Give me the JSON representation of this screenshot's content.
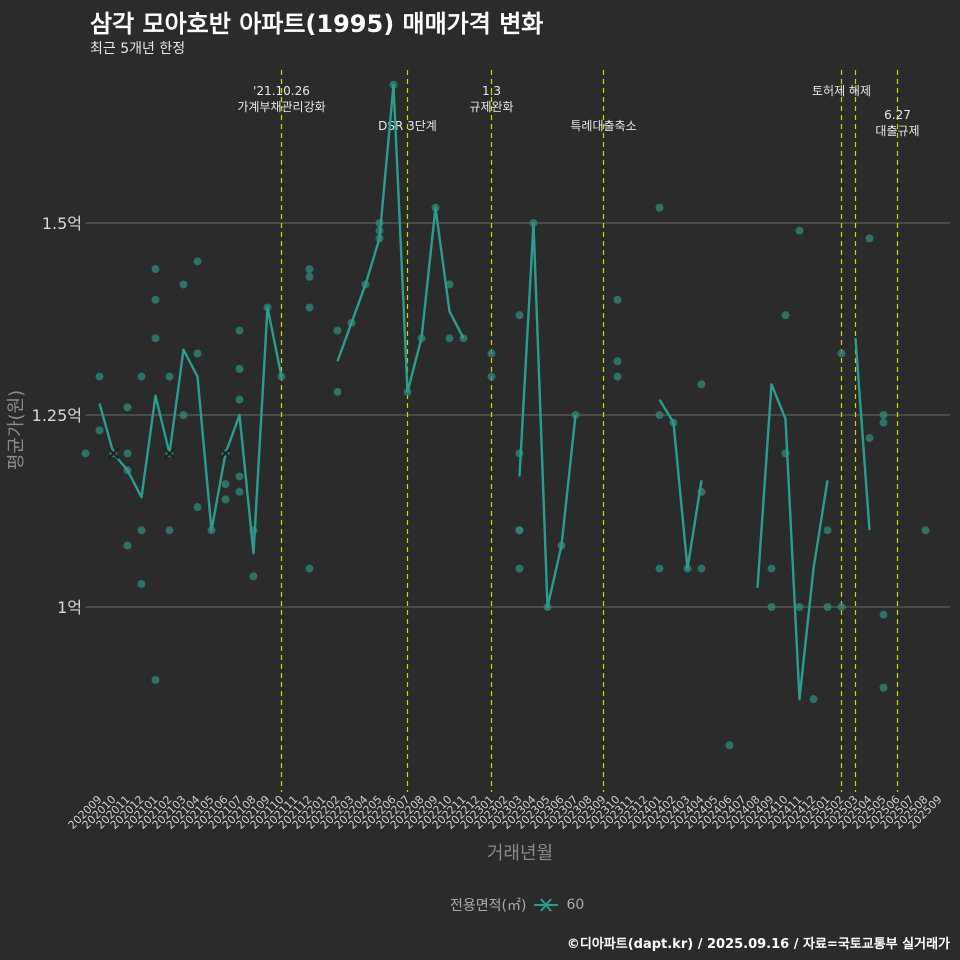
{
  "header": {
    "title": "삼각 모아호반 아파트(1995) 매매가격 변화",
    "subtitle": "최근 5개년 한정"
  },
  "caption": "©디아파트(dapt.kr) / 2025.09.16 / 자료=국토교통부 실거래가",
  "legend": {
    "title": "전용면적(㎡)",
    "item": "60"
  },
  "colors": {
    "line": "#2a9d8f",
    "point": "#2f8a7e",
    "vline": "#d4d400",
    "grid": "#6a6a6a",
    "text": "#cfcfcf"
  },
  "chart_data": {
    "type": "line",
    "xlabel": "거래년월",
    "ylabel": "평균가(원)",
    "ylim": [
      0.76,
      1.75
    ],
    "yticks": [
      {
        "value": 1.0,
        "label": "1억"
      },
      {
        "value": 1.25,
        "label": "1.25억"
      },
      {
        "value": 1.5,
        "label": "1.5억"
      }
    ],
    "categories": [
      "202009",
      "202010",
      "202011",
      "202012",
      "202101",
      "202102",
      "202103",
      "202104",
      "202105",
      "202106",
      "202107",
      "202108",
      "202109",
      "202110",
      "202111",
      "202112",
      "202201",
      "202202",
      "202203",
      "202204",
      "202205",
      "202206",
      "202207",
      "202208",
      "202209",
      "202210",
      "202211",
      "202212",
      "202301",
      "202302",
      "202303",
      "202304",
      "202305",
      "202306",
      "202307",
      "202308",
      "202309",
      "202310",
      "202311",
      "202312",
      "202401",
      "202402",
      "202403",
      "202404",
      "202405",
      "202406",
      "202407",
      "202408",
      "202409",
      "202410",
      "202411",
      "202412",
      "202501",
      "202502",
      "202503",
      "202504",
      "202505",
      "202506",
      "202507",
      "202508",
      "202509"
    ],
    "series": [
      {
        "name": "60",
        "values": [
          1.265,
          1.2,
          1.178,
          1.143,
          1.275,
          1.2,
          1.335,
          1.3,
          1.1,
          1.2,
          1.25,
          1.07,
          1.39,
          1.3,
          null,
          null,
          null,
          1.32,
          1.37,
          1.42,
          1.48,
          1.68,
          1.28,
          1.35,
          1.52,
          1.385,
          1.35,
          null,
          null,
          null,
          1.17,
          1.5,
          1.0,
          1.08,
          1.25,
          null,
          null,
          null,
          null,
          null,
          1.27,
          1.24,
          1.05,
          1.165,
          null,
          null,
          null,
          1.025,
          1.29,
          1.245,
          0.88,
          1.05,
          1.165,
          null,
          1.35,
          1.1,
          null,
          null,
          null,
          null,
          null
        ]
      }
    ],
    "points": [
      [
        "202009",
        1.3
      ],
      [
        "202009",
        1.23
      ],
      [
        "202010",
        1.2
      ],
      [
        "202011",
        1.26
      ],
      [
        "202011",
        1.2
      ],
      [
        "202011",
        1.178
      ],
      [
        "202011",
        1.08
      ],
      [
        "202012",
        1.3
      ],
      [
        "202012",
        1.1
      ],
      [
        "202012",
        1.03
      ],
      [
        "202101",
        1.44
      ],
      [
        "202101",
        1.4
      ],
      [
        "202101",
        1.35
      ],
      [
        "202101",
        0.905
      ],
      [
        "202102",
        1.3
      ],
      [
        "202102",
        1.2
      ],
      [
        "202102",
        1.1
      ],
      [
        "202103",
        1.42
      ],
      [
        "202103",
        1.25
      ],
      [
        "202104",
        1.45
      ],
      [
        "202104",
        1.33
      ],
      [
        "202104",
        1.13
      ],
      [
        "202105",
        1.1
      ],
      [
        "202106",
        1.2
      ],
      [
        "202106",
        1.16
      ],
      [
        "202106",
        1.14
      ],
      [
        "202107",
        1.36
      ],
      [
        "202107",
        1.31
      ],
      [
        "202107",
        1.27
      ],
      [
        "202107",
        1.17
      ],
      [
        "202107",
        1.15
      ],
      [
        "202108",
        1.1
      ],
      [
        "202108",
        1.04
      ],
      [
        "202109",
        1.39
      ],
      [
        "202110",
        1.3
      ],
      [
        "202112",
        1.44
      ],
      [
        "202112",
        1.43
      ],
      [
        "202112",
        1.39
      ],
      [
        "202112",
        1.05
      ],
      [
        "202202",
        1.36
      ],
      [
        "202202",
        1.28
      ],
      [
        "202203",
        1.37
      ],
      [
        "202204",
        1.42
      ],
      [
        "202205",
        1.5
      ],
      [
        "202205",
        1.49
      ],
      [
        "202205",
        1.48
      ],
      [
        "202206",
        1.68
      ],
      [
        "202207",
        1.28
      ],
      [
        "202208",
        1.35
      ],
      [
        "202209",
        1.52
      ],
      [
        "202210",
        1.42
      ],
      [
        "202210",
        1.35
      ],
      [
        "202211",
        1.35
      ],
      [
        "202301",
        1.33
      ],
      [
        "202301",
        1.3
      ],
      [
        "202303",
        1.38
      ],
      [
        "202303",
        1.2
      ],
      [
        "202303",
        1.1
      ],
      [
        "202303",
        1.1
      ],
      [
        "202303",
        1.05
      ],
      [
        "202304",
        1.5
      ],
      [
        "202305",
        1.0
      ],
      [
        "202306",
        1.08
      ],
      [
        "202307",
        1.25
      ],
      [
        "202310",
        1.4
      ],
      [
        "202310",
        1.32
      ],
      [
        "202310",
        1.3
      ],
      [
        "202401",
        1.52
      ],
      [
        "202401",
        1.25
      ],
      [
        "202401",
        1.05
      ],
      [
        "202402",
        1.24
      ],
      [
        "202403",
        1.05
      ],
      [
        "202404",
        1.29
      ],
      [
        "202404",
        1.15
      ],
      [
        "202404",
        1.05
      ],
      [
        "202406",
        0.82
      ],
      [
        "202409",
        1.05
      ],
      [
        "202409",
        1.0
      ],
      [
        "202410",
        1.38
      ],
      [
        "202410",
        1.2
      ],
      [
        "202411",
        1.49
      ],
      [
        "202411",
        1.0
      ],
      [
        "202412",
        0.88
      ],
      [
        "202501",
        1.1
      ],
      [
        "202501",
        1.0
      ],
      [
        "202502",
        1.33
      ],
      [
        "202502",
        1.0
      ],
      [
        "202504",
        1.48
      ],
      [
        "202504",
        1.22
      ],
      [
        "202505",
        1.25
      ],
      [
        "202505",
        1.24
      ],
      [
        "202505",
        0.99
      ],
      [
        "202505",
        0.895
      ],
      [
        "202508",
        1.1
      ],
      [
        "202510",
        1.2
      ]
    ],
    "cross_markers": [
      "202010",
      "202102",
      "202106"
    ],
    "annotations": [
      {
        "x": "202110",
        "lines": [
          "'21.10.26",
          "가계부채관리강화"
        ],
        "row": 0
      },
      {
        "x": "202207",
        "lines": [
          "DSR 3단계"
        ],
        "row": 1
      },
      {
        "x": "202301",
        "lines": [
          "1.3",
          "규제완화"
        ],
        "row": 0
      },
      {
        "x": "202309",
        "lines": [
          "특례대출축소"
        ],
        "row": 1
      },
      {
        "x": "202502",
        "lines": [],
        "row": 0
      },
      {
        "x": "202503",
        "lines": [
          "토허제 해제"
        ],
        "row": 0
      },
      {
        "x": "202506",
        "lines": [
          "6.27",
          "대출규제"
        ],
        "row": 2
      }
    ]
  }
}
